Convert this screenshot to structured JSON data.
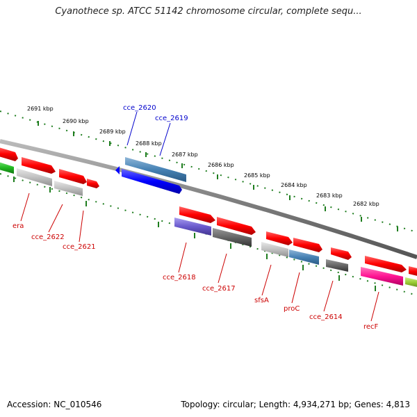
{
  "title": "Cyanothece sp. ATCC 51142 chromosome circular, complete sequ...",
  "accession": "Accession: NC_010546",
  "stats": "Topology: circular; Length: 4,934,271 bp; Genes: 4,813",
  "colors": {
    "red": "#ff0000",
    "blue": "#0000ff",
    "steel": "#4682b4",
    "gray": "#c0c0c0",
    "darkgray": "#666666",
    "green": "#22bb22",
    "lime": "#99cc33",
    "slate": "#6a5acd",
    "pink": "#ff1493",
    "ruler": "#1e7d1e",
    "backbone": "#808080"
  },
  "ruler_labels": [
    "2691 kbp",
    "2690 kbp",
    "2689 kbp",
    "2688 kbp",
    "2687 kbp",
    "2686 kbp",
    "2685 kbp",
    "2684 kbp",
    "2683 kbp",
    "2682 kbp"
  ],
  "gene_labels": [
    {
      "text": "cce_2620",
      "color": "#0000cc"
    },
    {
      "text": "cce_2619",
      "color": "#0000cc"
    },
    {
      "text": "era",
      "color": "#cc0000"
    },
    {
      "text": "cce_2622",
      "color": "#cc0000"
    },
    {
      "text": "cce_2621",
      "color": "#cc0000"
    },
    {
      "text": "cce_2618",
      "color": "#cc0000"
    },
    {
      "text": "cce_2617",
      "color": "#cc0000"
    },
    {
      "text": "sfsA",
      "color": "#cc0000"
    },
    {
      "text": "proC",
      "color": "#cc0000"
    },
    {
      "text": "cce_2614",
      "color": "#cc0000"
    },
    {
      "text": "recF",
      "color": "#cc0000"
    }
  ]
}
